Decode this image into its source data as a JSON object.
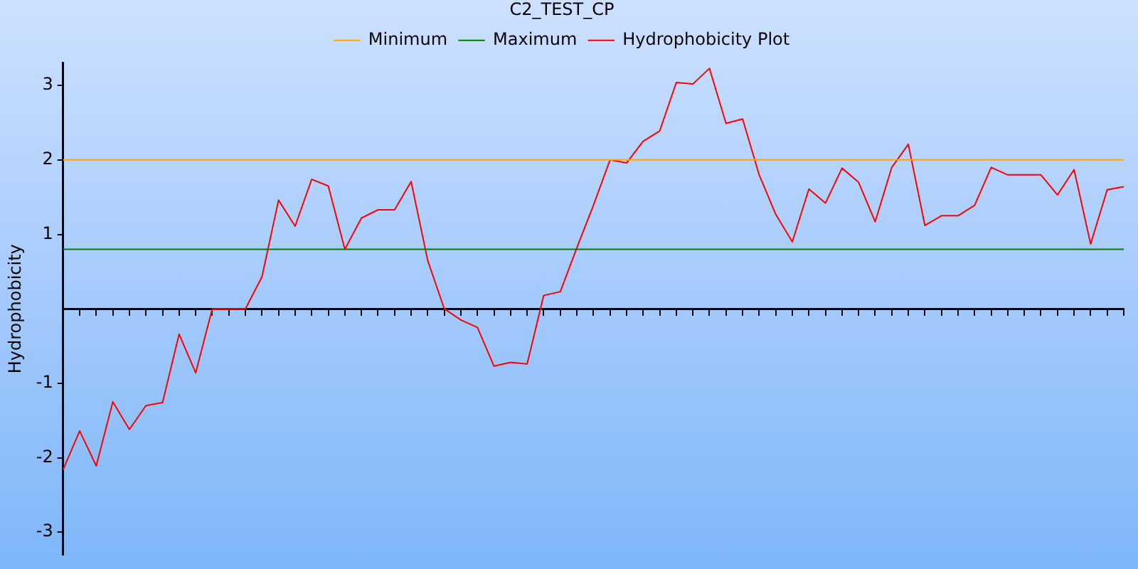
{
  "chart_data": {
    "type": "line",
    "title": "C2_TEST_CP",
    "ylabel": "Hydrophobicity",
    "categories": [
      null,
      null,
      null,
      null,
      null,
      null,
      null,
      null,
      null,
      null,
      null,
      null,
      null,
      null,
      null,
      null,
      null,
      null,
      null,
      null,
      null,
      null,
      null,
      null,
      null,
      null,
      null,
      null,
      null,
      null,
      null,
      null,
      null,
      null,
      null,
      null,
      null,
      null,
      null,
      null,
      null,
      null,
      null,
      null,
      null,
      null,
      null,
      null,
      null,
      null,
      null,
      null,
      null,
      null,
      null,
      null,
      null,
      null,
      null,
      null,
      null,
      null,
      null,
      null,
      null
    ],
    "series": [
      {
        "name": "Minimum",
        "color": "#ffa500",
        "values": [
          2,
          2,
          2,
          2,
          2,
          2,
          2,
          2,
          2,
          2,
          2,
          2,
          2,
          2,
          2,
          2,
          2,
          2,
          2,
          2,
          2,
          2,
          2,
          2,
          2,
          2,
          2,
          2,
          2,
          2,
          2,
          2,
          2,
          2,
          2,
          2,
          2,
          2,
          2,
          2,
          2,
          2,
          2,
          2,
          2,
          2,
          2,
          2,
          2,
          2,
          2,
          2,
          2,
          2,
          2,
          2,
          2,
          2,
          2,
          2,
          2,
          2,
          2,
          2,
          2
        ]
      },
      {
        "name": "Maximum",
        "color": "#008000",
        "values": [
          0.8,
          0.8,
          0.8,
          0.8,
          0.8,
          0.8,
          0.8,
          0.8,
          0.8,
          0.8,
          0.8,
          0.8,
          0.8,
          0.8,
          0.8,
          0.8,
          0.8,
          0.8,
          0.8,
          0.8,
          0.8,
          0.8,
          0.8,
          0.8,
          0.8,
          0.8,
          0.8,
          0.8,
          0.8,
          0.8,
          0.8,
          0.8,
          0.8,
          0.8,
          0.8,
          0.8,
          0.8,
          0.8,
          0.8,
          0.8,
          0.8,
          0.8,
          0.8,
          0.8,
          0.8,
          0.8,
          0.8,
          0.8,
          0.8,
          0.8,
          0.8,
          0.8,
          0.8,
          0.8,
          0.8,
          0.8,
          0.8,
          0.8,
          0.8,
          0.8,
          0.8,
          0.8,
          0.8,
          0.8,
          0.8
        ]
      },
      {
        "name": "Hydrophobicity Plot",
        "color": "#ff0000",
        "values": [
          -2.16,
          -1.64,
          -2.11,
          -1.25,
          -1.62,
          -1.3,
          -1.26,
          -0.34,
          -0.86,
          0,
          0,
          0,
          0.43,
          1.46,
          1.11,
          1.74,
          1.65,
          0.8,
          1.22,
          1.33,
          1.33,
          1.71,
          0.65,
          0,
          -0.15,
          -0.25,
          -0.77,
          -0.72,
          -0.74,
          0.18,
          0.23,
          0.82,
          1.39,
          2,
          1.96,
          2.25,
          2.39,
          3.04,
          3.02,
          3.23,
          2.49,
          2.55,
          1.8,
          1.27,
          0.9,
          1.61,
          1.42,
          1.89,
          1.7,
          1.17,
          1.9,
          2.21,
          1.12,
          1.25,
          1.25,
          1.39,
          1.9,
          1.8,
          1.8,
          1.8,
          1.53,
          1.87,
          0.87,
          1.6,
          1.64
        ]
      }
    ],
    "ylim": [
      -3.3,
      3.3
    ],
    "yticks": [
      -3,
      -2,
      -1,
      1,
      2,
      3
    ],
    "tick_labels": "y",
    "grid": false,
    "legend": "top",
    "marker": "none",
    "line_style": "solid"
  }
}
